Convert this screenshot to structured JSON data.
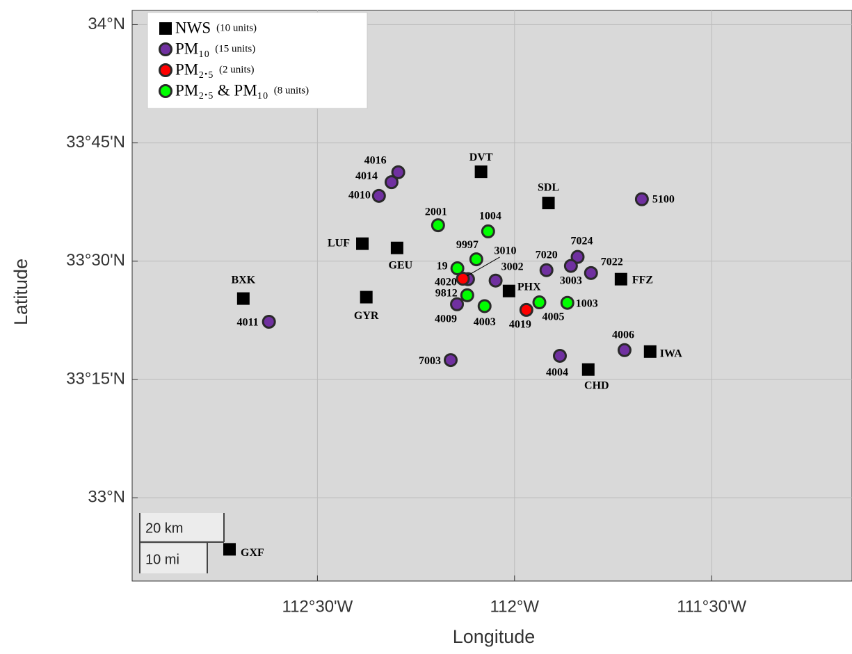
{
  "chart_data": {
    "type": "scatter",
    "x_label": "Longitude",
    "y_label": "Latitude",
    "xlim": [
      -112.97,
      -111.144
    ],
    "ylim": [
      32.824,
      34.03
    ],
    "xticks": [
      {
        "value": -112.5,
        "label": "112°30'W"
      },
      {
        "value": -112,
        "label": "112°W"
      },
      {
        "value": -111.5,
        "label": "111°30'W"
      }
    ],
    "yticks": [
      {
        "value": 33,
        "label": "33°N"
      },
      {
        "value": 33.25,
        "label": "33°15'N"
      },
      {
        "value": 33.5,
        "label": "33°30'N"
      },
      {
        "value": 33.75,
        "label": "33°45'N"
      },
      {
        "value": 34,
        "label": "34°N"
      }
    ],
    "grid": true,
    "legend": "upper left",
    "scale_bar": [
      "20 km",
      "10 mi"
    ],
    "series": [
      {
        "name": "NWS",
        "units_label": "(10 units)",
        "color": "#000000",
        "marker": "square",
        "labels": [
          "DVT",
          "SDL",
          "LUF",
          "GEU",
          "BXK",
          "GYR",
          "PHX",
          "FFZ",
          "IWA",
          "CHD",
          "GXF"
        ],
        "x": [
          -112.085,
          -111.914,
          -112.386,
          -112.298,
          -112.688,
          -112.376,
          -112.014,
          -111.73,
          -111.656,
          -111.813,
          -112.723
        ],
        "y": [
          33.689,
          33.623,
          33.537,
          33.528,
          33.421,
          33.424,
          33.437,
          33.462,
          33.309,
          33.271,
          32.891
        ]
      },
      {
        "name": "PM₁₀",
        "units_label": "(15 units)",
        "color": "#7030a0",
        "marker": "circle",
        "labels": [
          "4016",
          "4014",
          "4010",
          "4011",
          "5100",
          "7024",
          "7020",
          "7022",
          "3003",
          "3002",
          "4020",
          "4009",
          "7003",
          "4004",
          "4006"
        ],
        "x": [
          -112.295,
          -112.312,
          -112.344,
          -112.623,
          -111.677,
          -111.84,
          -111.919,
          -111.806,
          -111.857,
          -112.048,
          -112.118,
          -112.146,
          -112.162,
          -111.885,
          -111.721
        ],
        "y": [
          33.688,
          33.667,
          33.638,
          33.372,
          33.631,
          33.509,
          33.481,
          33.475,
          33.49,
          33.459,
          33.462,
          33.409,
          33.291,
          33.3,
          33.312
        ]
      },
      {
        "name": "PM₂.₅",
        "units_label": "(2 units)",
        "color": "#ff0000",
        "marker": "circle",
        "labels": [
          "3010",
          "4019"
        ],
        "x": [
          -112.131,
          -111.97
        ],
        "y": [
          33.463,
          33.397
        ]
      },
      {
        "name": "PM₂.₅ & PM₁₀",
        "units_label": "(8 units)",
        "color": "#00ff00",
        "marker": "circle",
        "labels": [
          "2001",
          "1004",
          "9997",
          "19",
          "9812",
          "4003",
          "4005",
          "1003"
        ],
        "x": [
          -112.194,
          -112.067,
          -112.097,
          -112.145,
          -112.12,
          -112.076,
          -111.937,
          -111.866
        ],
        "y": [
          33.576,
          33.563,
          33.504,
          33.485,
          33.428,
          33.405,
          33.413,
          33.412
        ]
      }
    ]
  }
}
